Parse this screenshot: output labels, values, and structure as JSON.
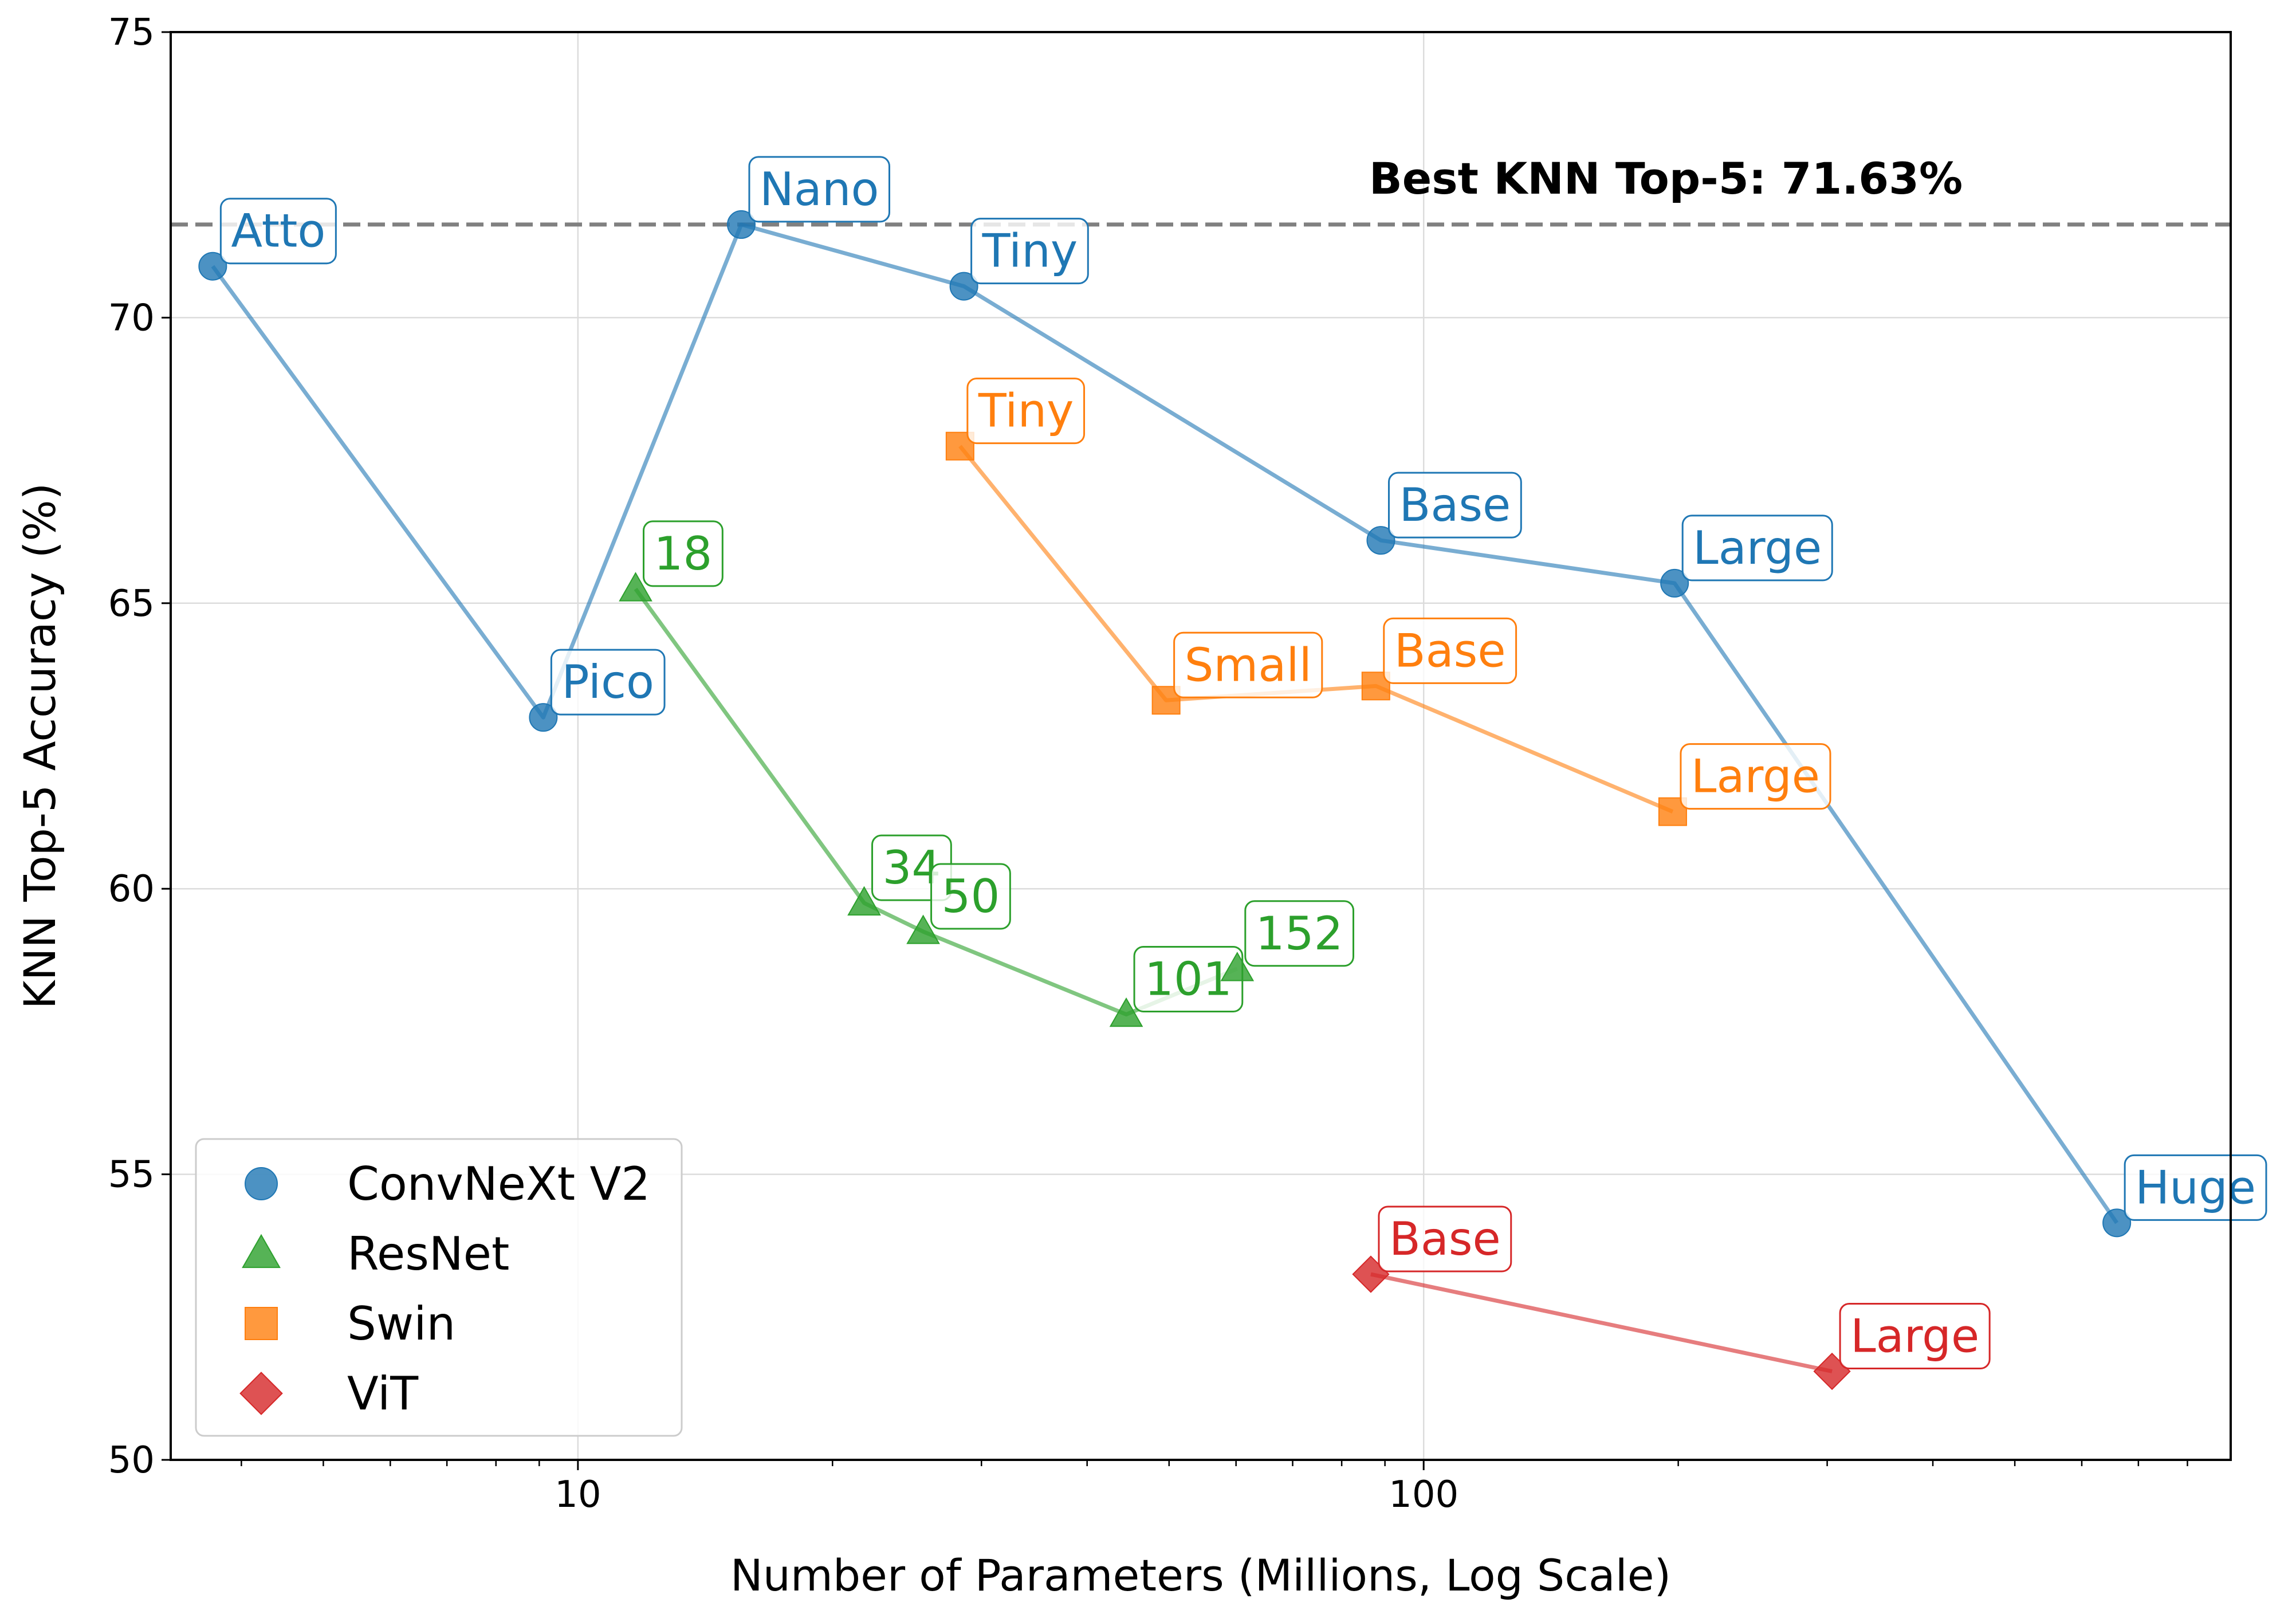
{
  "chart_data": {
    "type": "line",
    "title": "",
    "xlabel": "Number of Parameters (Millions, Log Scale)",
    "ylabel": "KNN Top-5 Accuracy (%)",
    "xscale": "log",
    "xlim": [
      3.3,
      900
    ],
    "ylim": [
      50,
      75
    ],
    "xticks": [
      10,
      100
    ],
    "xtick_labels": [
      "10",
      "100"
    ],
    "yticks": [
      50,
      55,
      60,
      65,
      70,
      75
    ],
    "ytick_labels": [
      "50",
      "55",
      "60",
      "65",
      "70",
      "75"
    ],
    "grid": true,
    "legend_position": "lower-left",
    "reference_line": {
      "y": 71.63,
      "label": "Best KNN Top-5: 71.63%"
    },
    "series": [
      {
        "name": "ConvNeXt V2",
        "color": "#1f77b4",
        "marker": "circle",
        "points": [
          {
            "label": "Atto",
            "x": 3.7,
            "y": 70.9
          },
          {
            "label": "Pico",
            "x": 9.1,
            "y": 63.0
          },
          {
            "label": "Nano",
            "x": 15.6,
            "y": 71.63
          },
          {
            "label": "Tiny",
            "x": 28.6,
            "y": 70.55
          },
          {
            "label": "Base",
            "x": 89,
            "y": 66.1
          },
          {
            "label": "Large",
            "x": 198,
            "y": 65.35
          },
          {
            "label": "Huge",
            "x": 660,
            "y": 54.15
          }
        ]
      },
      {
        "name": "ResNet",
        "color": "#2ca02c",
        "marker": "triangle",
        "points": [
          {
            "label": "18",
            "x": 11.7,
            "y": 65.25
          },
          {
            "label": "34",
            "x": 21.8,
            "y": 59.75
          },
          {
            "label": "50",
            "x": 25.6,
            "y": 59.25
          },
          {
            "label": "101",
            "x": 44.5,
            "y": 57.8
          },
          {
            "label": "152",
            "x": 60.2,
            "y": 58.6
          }
        ]
      },
      {
        "name": "Swin",
        "color": "#ff7f0e",
        "marker": "square",
        "points": [
          {
            "label": "Tiny",
            "x": 28.3,
            "y": 67.75
          },
          {
            "label": "Small",
            "x": 49.6,
            "y": 63.3
          },
          {
            "label": "Base",
            "x": 87.8,
            "y": 63.55
          },
          {
            "label": "Large",
            "x": 197,
            "y": 61.35
          }
        ]
      },
      {
        "name": "ViT",
        "color": "#d62728",
        "marker": "diamond",
        "points": [
          {
            "label": "Base",
            "x": 86.6,
            "y": 53.25
          },
          {
            "label": "Large",
            "x": 304,
            "y": 51.55
          }
        ]
      }
    ]
  }
}
